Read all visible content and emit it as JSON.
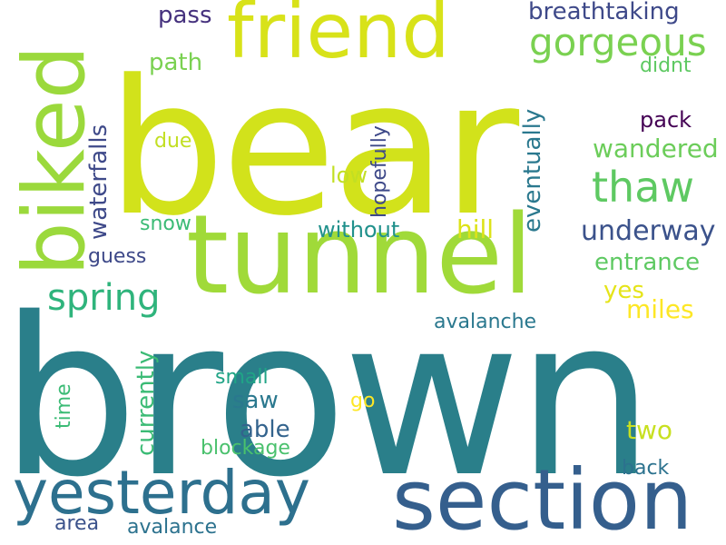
{
  "word_cloud": {
    "background_color": "#ffffff",
    "words": {
      "bear": "bear",
      "brown": "brown",
      "tunnel": "tunnel",
      "friend": "friend",
      "section": "section",
      "yesterday": "yesterday",
      "biked": "biked",
      "gorgeous": "gorgeous",
      "thaw": "thaw",
      "spring": "spring",
      "breathtaking": "breathtaking",
      "underway": "underway",
      "wandered": "wandered",
      "entrance": "entrance",
      "miles": "miles",
      "yes": "yes",
      "pass": "pass",
      "path": "path",
      "didnt": "didnt",
      "pack": "pack",
      "due": "due",
      "low": "low",
      "snow": "snow",
      "without": "without",
      "hill": "hill",
      "guess": "guess",
      "avalanche": "avalanche",
      "small": "small",
      "saw": "saw",
      "able": "able",
      "go": "go",
      "blockage": "blockage",
      "two": "two",
      "back": "back",
      "area": "area",
      "avalance": "avalance",
      "waterfalls": "waterfalls",
      "eventually": "eventually",
      "hopefully": "hopefully",
      "currently": "currently",
      "time": "time"
    }
  }
}
